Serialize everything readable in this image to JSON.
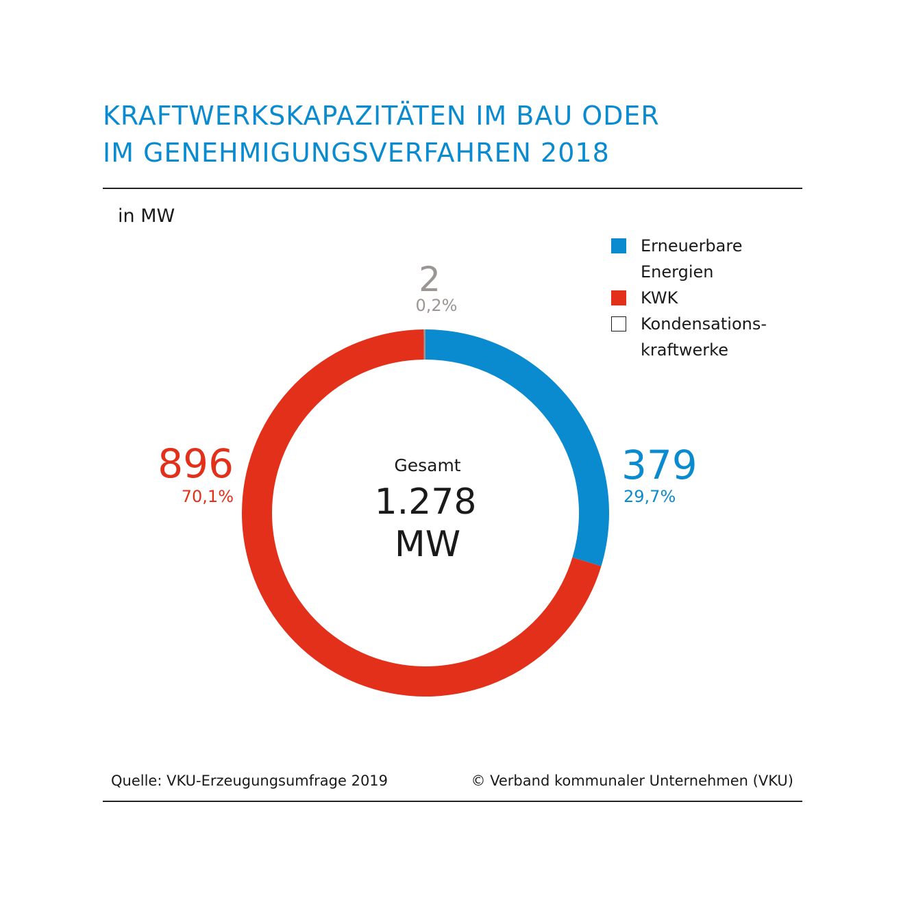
{
  "header": {
    "title_line1": "KRAFTWERKSKAPAZITÄTEN IM BAU ODER",
    "title_line2": "IM GENEHMIGUNGSVERFAHREN 2018",
    "unit": "in MW"
  },
  "colors": {
    "title": "#0a8acf",
    "erneuerbare": "#0a8acf",
    "kwk": "#e2301a",
    "kondensation": "#9b9593",
    "text": "#1a1a1a",
    "rule": "#222222"
  },
  "legend": [
    {
      "line1": "Erneuerbare",
      "line2": "Energien",
      "color": "#0a8acf",
      "outline": false
    },
    {
      "line1": "KWK",
      "line2": "",
      "color": "#e2301a",
      "outline": false
    },
    {
      "line1": "Kondensations-",
      "line2": "kraftwerke",
      "color": "#ffffff",
      "outline": true
    }
  ],
  "center": {
    "label": "Gesamt",
    "value": "1.278",
    "unit": "MW"
  },
  "chart_data": {
    "type": "pie",
    "donut": true,
    "total": 1278,
    "total_unit": "MW",
    "slices": [
      {
        "name": "Erneuerbare Energien",
        "value": 379,
        "value_label": "379",
        "percent": 29.7,
        "percent_label": "29,7%",
        "color": "#0a8acf"
      },
      {
        "name": "KWK",
        "value": 896,
        "value_label": "896",
        "percent": 70.1,
        "percent_label": "70,1%",
        "color": "#e2301a"
      },
      {
        "name": "Kondensationskraftwerke",
        "value": 2,
        "value_label": "2",
        "percent": 0.2,
        "percent_label": "0,2%",
        "color": "#9b9593"
      }
    ]
  },
  "footer": {
    "source": "Quelle: VKU-Erzeugungsumfrage 2019",
    "copyright": "© Verband kommunaler Unternehmen (VKU)"
  }
}
